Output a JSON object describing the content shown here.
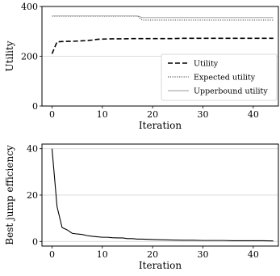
{
  "chart_data": [
    {
      "type": "line",
      "xlabel": "Iteration",
      "ylabel": "Utility",
      "xlim": [
        -2,
        45
      ],
      "ylim": [
        0,
        400
      ],
      "xticks": [
        0,
        10,
        20,
        30,
        40
      ],
      "yticks": [
        0,
        200,
        400
      ],
      "grid": "horizontal",
      "legend_position": "lower-right",
      "series": [
        {
          "name": "Utility",
          "style": "dashed",
          "x": [
            0,
            1,
            2,
            3,
            4,
            5,
            6,
            7,
            8,
            9,
            10,
            12,
            14,
            16,
            18,
            20,
            22,
            24,
            26,
            28,
            30,
            32,
            34,
            36,
            38,
            40,
            42,
            44
          ],
          "y": [
            210,
            258,
            259,
            260,
            260,
            261,
            262,
            263,
            265,
            268,
            269,
            270,
            270,
            271,
            271,
            271,
            271,
            271,
            272,
            272,
            272,
            272,
            272,
            272,
            272,
            272,
            272,
            272
          ]
        },
        {
          "name": "Expected utility",
          "style": "dotted",
          "x": [
            0,
            17,
            18,
            44
          ],
          "y": [
            361,
            361,
            345,
            345
          ]
        },
        {
          "name": "Upperbound utility",
          "style": "solid",
          "x": [
            0,
            17,
            18,
            44
          ],
          "y": [
            362,
            362,
            355,
            355
          ]
        }
      ]
    },
    {
      "type": "line",
      "xlabel": "Iteration",
      "ylabel": "Best jump efficiency",
      "xlim": [
        -2,
        45
      ],
      "ylim": [
        -2,
        42
      ],
      "xticks": [
        0,
        10,
        20,
        30,
        40
      ],
      "yticks": [
        0,
        20,
        40
      ],
      "grid": "horizontal",
      "series": [
        {
          "name": "",
          "style": "solid",
          "x": [
            0,
            1,
            2,
            3,
            4,
            5,
            6,
            7,
            8,
            9,
            10,
            11,
            12,
            13,
            14,
            15,
            16,
            17,
            18,
            19,
            20,
            22,
            24,
            26,
            28,
            30,
            32,
            34,
            36,
            38,
            40,
            42,
            44
          ],
          "y": [
            40,
            15,
            6,
            5,
            3.5,
            3.2,
            3.0,
            2.5,
            2.2,
            2.0,
            1.8,
            1.8,
            1.6,
            1.5,
            1.5,
            1.2,
            1.2,
            1.0,
            1.0,
            0.9,
            0.8,
            0.7,
            0.6,
            0.5,
            0.5,
            0.4,
            0.4,
            0.4,
            0.3,
            0.3,
            0.3,
            0.3,
            0.2
          ]
        }
      ]
    }
  ]
}
